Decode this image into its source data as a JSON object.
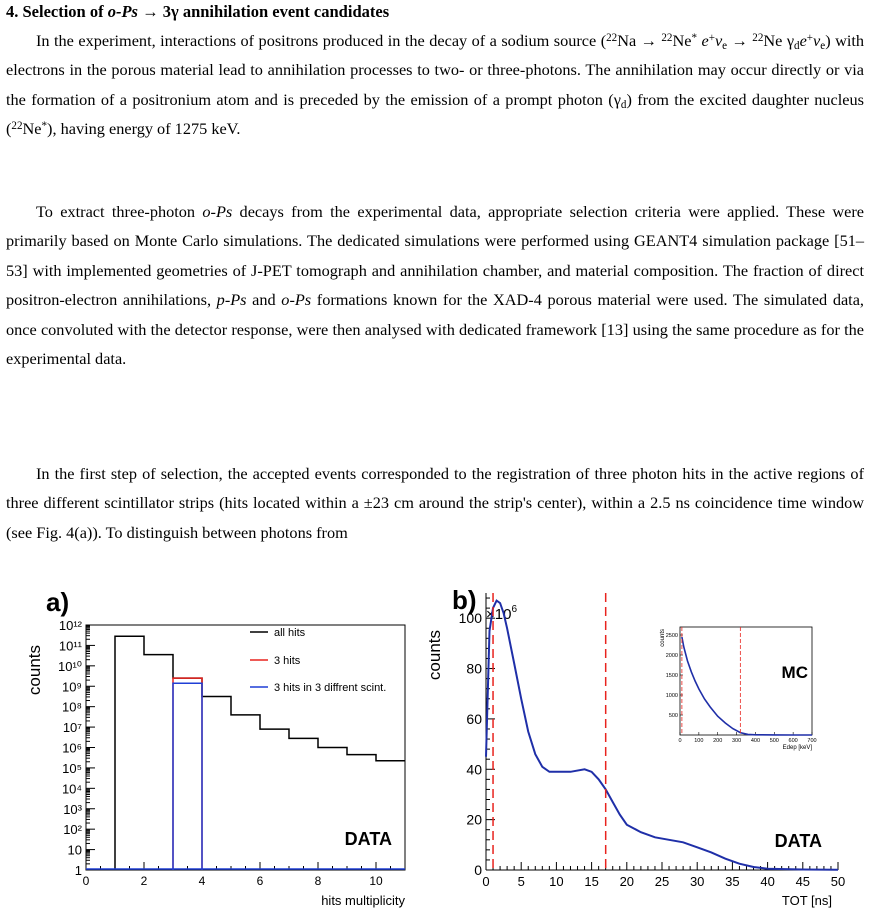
{
  "section": {
    "number": "4.",
    "title_pre": "Selection of ",
    "title_ops": "o-Ps",
    "title_arrow": " → 3γ annihilation event candidates"
  },
  "paragraphs": {
    "p1": {
      "a": "In the experiment, interactions of positrons produced in the decay of a sodium source (",
      "b": "Na → ",
      "c": "Ne",
      "d": " e",
      "e": "ν",
      "f": " → ",
      "g": "Ne γ",
      "h": "e",
      "i": "ν",
      "j": ") with electrons in the porous material lead to annihilation processes to two- or three-photons. The annihilation may occur directly or via the formation of a positronium atom and is preceded by the emission of a prompt photon (γ",
      "k": ") from the excited daughter nucleus (",
      "l": "Ne",
      "m": "), having energy of 1275 keV."
    },
    "p2": {
      "a": "To extract three-photon ",
      "ops": "o-Ps",
      "b": " decays from the experimental data, appropriate selection criteria were applied. These were primarily based on Monte Carlo simulations. The dedicated simulations were performed using GEANT4 simulation package [51–53] with implemented geometries of J-PET tomograph and annihilation chamber, and material composition. The fraction of direct positron-electron annihilations, ",
      "pps": "p-Ps",
      "c": " and ",
      "ops2": "o-Ps",
      "d": " formations known for the XAD-4 porous material were used. The simulated data, once convoluted with the detector response, were then analysed with dedicated framework [13] using the same procedure as for the experimental data."
    },
    "p3": {
      "text": "In the first step of selection, the accepted events corresponded to the registration of three photon hits in the active regions of three different scintillator strips (hits located within a ±23 cm around the strip's center), within a 2.5 ns coincidence time window (see Fig. 4(a)). To distinguish between photons from"
    },
    "sup22": "22",
    "sup_star": "*",
    "sup_plus": "+",
    "sub_e": "e",
    "sub_d": "d"
  },
  "figure_a": {
    "panel_label": "a)",
    "ylabel": "counts",
    "xlabel": "hits multiplicity",
    "data_tag": "DATA",
    "xlim": [
      0,
      11
    ],
    "xticks": [
      "0",
      "2",
      "4",
      "6",
      "8",
      "10"
    ],
    "ylog_range": [
      0,
      12
    ],
    "yticks": [
      "1",
      "10",
      "10²",
      "10³",
      "10⁴",
      "10⁵",
      "10⁶",
      "10⁷",
      "10⁸",
      "10⁹",
      "10¹⁰",
      "10¹¹",
      "10¹²"
    ],
    "legend": [
      "all hits",
      "3 hits",
      "3 hits in 3 diffrent scint."
    ],
    "colors": {
      "all": "#000000",
      "three": "#e8231e",
      "scint": "#1f3fd6"
    },
    "chart_data": {
      "type": "bar",
      "x_bins": [
        [
          1,
          2
        ],
        [
          2,
          3
        ],
        [
          3,
          4
        ],
        [
          4,
          5
        ],
        [
          5,
          6
        ],
        [
          6,
          7
        ],
        [
          7,
          8
        ],
        [
          8,
          9
        ],
        [
          9,
          10
        ],
        [
          10,
          11
        ]
      ],
      "series": [
        {
          "name": "all hits",
          "log10_values": [
            11.45,
            10.55,
            9.4,
            8.5,
            7.6,
            6.9,
            6.45,
            6.0,
            5.65,
            5.35
          ]
        },
        {
          "name": "3 hits",
          "bin": [
            3,
            4
          ],
          "log10_value": 9.4
        },
        {
          "name": "3 hits in 3 diffrent scint.",
          "bin": [
            3,
            4
          ],
          "log10_value": 9.15
        }
      ]
    }
  },
  "figure_b": {
    "panel_label": "b)",
    "ylabel": "counts",
    "xlabel": "TOT [ns]",
    "multiplier": "×10",
    "multiplier_exp": "6",
    "data_tag": "DATA",
    "xlim": [
      0,
      50
    ],
    "ylim": [
      0,
      110
    ],
    "xticks": [
      "0",
      "5",
      "10",
      "15",
      "20",
      "25",
      "30",
      "35",
      "40",
      "45",
      "50"
    ],
    "yticks": [
      "0",
      "20",
      "40",
      "60",
      "80",
      "100"
    ],
    "cut_lines_ns": [
      1,
      17
    ],
    "line_color": "#1f2fa8",
    "cut_color": "#e8231e",
    "chart_data": {
      "type": "line",
      "x": [
        0,
        0.5,
        1,
        1.5,
        2,
        2.5,
        3,
        4,
        5,
        6,
        7,
        8,
        9,
        10,
        12,
        14,
        15,
        16,
        17,
        18,
        19,
        20,
        22,
        24,
        26,
        28,
        30,
        32,
        34,
        36,
        38,
        40,
        45,
        50
      ],
      "y": [
        45,
        95,
        104,
        107,
        106,
        102,
        96,
        82,
        68,
        55,
        46,
        41,
        39,
        39,
        39,
        40,
        39,
        36,
        32,
        27,
        22,
        18,
        15,
        13,
        12,
        11,
        9,
        7,
        4.5,
        2.5,
        1.2,
        0.5,
        0.2,
        0.1
      ]
    },
    "inset": {
      "ylabel": "counts",
      "xlabel": "Edep [keV]",
      "tag": "MC",
      "xticks": [
        "0",
        "100",
        "200",
        "300",
        "400",
        "500",
        "600",
        "700"
      ],
      "yticks": [
        "500",
        "1000",
        "1500",
        "2000",
        "2500"
      ],
      "xlim": [
        0,
        700
      ],
      "ylim": [
        0,
        2700
      ],
      "cut_lines_kev": [
        10,
        320
      ],
      "chart_data": {
        "type": "line",
        "x": [
          10,
          20,
          40,
          60,
          80,
          100,
          130,
          160,
          200,
          240,
          280,
          320,
          360,
          400,
          500,
          600,
          700
        ],
        "y": [
          2450,
          2200,
          1850,
          1580,
          1350,
          1150,
          900,
          700,
          470,
          300,
          160,
          60,
          15,
          5,
          2,
          1,
          0
        ]
      }
    }
  }
}
